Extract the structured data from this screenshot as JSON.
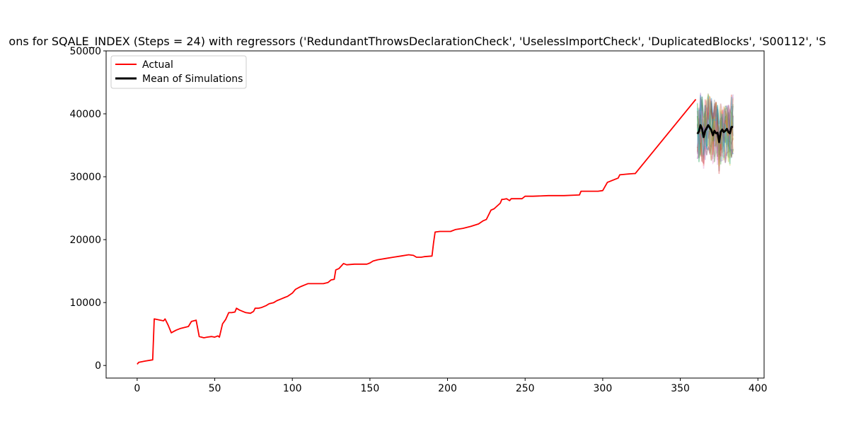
{
  "chart_data": {
    "type": "line",
    "title": "ons for SQALE_INDEX (Steps = 24) with regressors ('RedundantThrowsDeclarationCheck', 'UselessImportCheck', 'DuplicatedBlocks', 'S00112', 'S",
    "xlabel": "",
    "ylabel": "",
    "xlim": [
      -20,
      404
    ],
    "ylim": [
      -2000,
      50000
    ],
    "x_ticks": [
      0,
      50,
      100,
      150,
      200,
      250,
      300,
      350,
      400
    ],
    "y_ticks": [
      0,
      10000,
      20000,
      30000,
      40000,
      50000
    ],
    "grid": false,
    "legend": {
      "placement": "upper-left",
      "entries": [
        {
          "label": "Actual",
          "color": "#ff0000"
        },
        {
          "label": "Mean of Simulations",
          "color": "#000000"
        }
      ]
    },
    "series": [
      {
        "name": "Actual",
        "color": "#ff0000",
        "x": [
          0,
          1,
          5,
          10,
          11,
          15,
          17,
          18,
          20,
          22,
          25,
          28,
          33,
          35,
          38,
          40,
          43,
          45,
          48,
          50,
          52,
          53,
          55,
          57,
          59,
          61,
          63,
          64,
          66,
          70,
          73,
          75,
          76,
          78,
          80,
          83,
          85,
          88,
          90,
          93,
          95,
          97,
          100,
          102,
          105,
          106,
          108,
          110,
          115,
          120,
          123,
          125,
          127,
          128,
          130,
          133,
          135,
          140,
          145,
          148,
          150,
          152,
          155,
          160,
          165,
          170,
          175,
          178,
          180,
          183,
          185,
          190,
          191,
          192,
          195,
          200,
          202,
          205,
          210,
          215,
          220,
          223,
          225,
          228,
          230,
          234,
          235,
          236,
          238,
          240,
          241,
          243,
          245,
          246,
          248,
          250,
          255,
          265,
          270,
          275,
          285,
          286,
          287,
          295,
          297,
          300,
          303,
          305,
          310,
          311,
          315,
          320,
          321,
          360
        ],
        "y": [
          200,
          500,
          700,
          900,
          7400,
          7200,
          7100,
          7400,
          6400,
          5200,
          5600,
          5900,
          6200,
          7000,
          7200,
          4600,
          4400,
          4500,
          4600,
          4500,
          4700,
          4500,
          6600,
          7300,
          8400,
          8400,
          8500,
          9100,
          8800,
          8400,
          8300,
          8600,
          9100,
          9100,
          9200,
          9500,
          9800,
          10000,
          10300,
          10600,
          10800,
          11000,
          11500,
          12100,
          12500,
          12600,
          12800,
          13000,
          13000,
          13000,
          13200,
          13600,
          13700,
          15200,
          15400,
          16200,
          16000,
          16100,
          16100,
          16100,
          16300,
          16600,
          16800,
          17000,
          17200,
          17400,
          17600,
          17500,
          17200,
          17200,
          17300,
          17400,
          19500,
          21200,
          21300,
          21300,
          21300,
          21600,
          21800,
          22100,
          22500,
          23000,
          23200,
          24700,
          24900,
          25800,
          26400,
          26400,
          26500,
          26200,
          26500,
          26500,
          26500,
          26500,
          26500,
          26900,
          26900,
          27000,
          27000,
          27000,
          27100,
          27700,
          27700,
          27700,
          27700,
          27800,
          29100,
          29300,
          29800,
          30300,
          30400,
          30500,
          30500,
          42300
        ]
      },
      {
        "name": "Mean of Simulations",
        "color": "#000000",
        "x": [
          361,
          362,
          363,
          364,
          365,
          366,
          367,
          368,
          369,
          370,
          371,
          372,
          373,
          374,
          375,
          376,
          377,
          378,
          379,
          380,
          381,
          382,
          383,
          384
        ],
        "y": [
          36800,
          37200,
          38200,
          37600,
          36300,
          37300,
          37700,
          38200,
          37800,
          37400,
          36600,
          37300,
          36900,
          37000,
          35500,
          37100,
          37500,
          37100,
          37300,
          37600,
          37100,
          36900,
          37900,
          37900
        ]
      }
    ],
    "simulations": {
      "x_range": [
        361,
        384
      ],
      "y_range": [
        26500,
        47900
      ],
      "count": 20,
      "colors": [
        "#1f77b4",
        "#ff7f0e",
        "#2ca02c",
        "#d62728",
        "#9467bd",
        "#8c564b",
        "#e377c2",
        "#7f7f7f",
        "#bcbd22",
        "#17becf"
      ]
    }
  }
}
